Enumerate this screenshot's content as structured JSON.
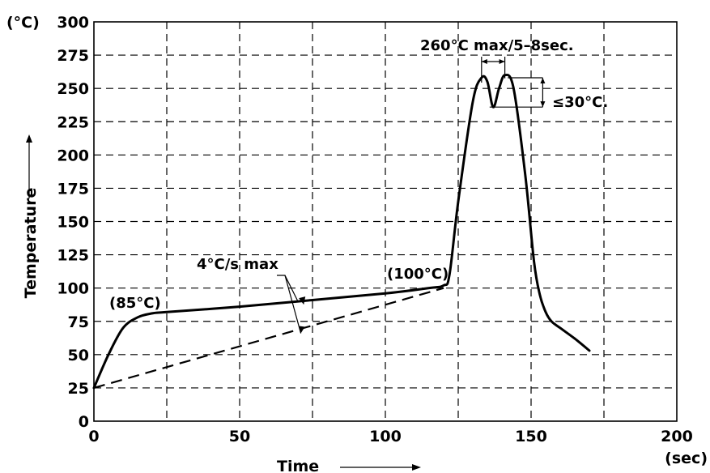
{
  "chart_data": {
    "type": "line",
    "title": "",
    "xlabel": "Time",
    "ylabel": "Temperature",
    "xunit": "(sec)",
    "yunit": "(°C)",
    "xlim": [
      0,
      200
    ],
    "ylim": [
      0,
      300
    ],
    "x_ticks": [
      "0",
      "50",
      "100",
      "150",
      "200"
    ],
    "y_ticks": [
      "0",
      "25",
      "50",
      "75",
      "100",
      "125",
      "150",
      "175",
      "200",
      "225",
      "250",
      "275",
      "300"
    ],
    "grid": true,
    "series": [
      {
        "style": "solid",
        "x": [
          0,
          5,
          10,
          15,
          20,
          25,
          50,
          75,
          100,
          115,
          120,
          122,
          125,
          130,
          133,
          135,
          137,
          139,
          141,
          144,
          148,
          151,
          153,
          155,
          157,
          160,
          165,
          170
        ],
        "y": [
          25,
          50,
          70,
          78,
          81,
          82,
          86,
          91,
          96,
          100,
          102,
          110,
          165,
          240,
          258,
          255,
          236,
          250,
          260,
          250,
          185,
          120,
          95,
          82,
          75,
          70,
          62,
          53
        ]
      },
      {
        "style": "dashed",
        "x": [
          0,
          120
        ],
        "y": [
          25,
          100
        ]
      }
    ],
    "annotations": {
      "peak_label": "260°C  max/5–8sec.",
      "dip_label": "≤30°C.",
      "ramp_label": "4°C/s  max",
      "preheat_label": "(85°C)",
      "soak_label": "(100°C)"
    }
  }
}
